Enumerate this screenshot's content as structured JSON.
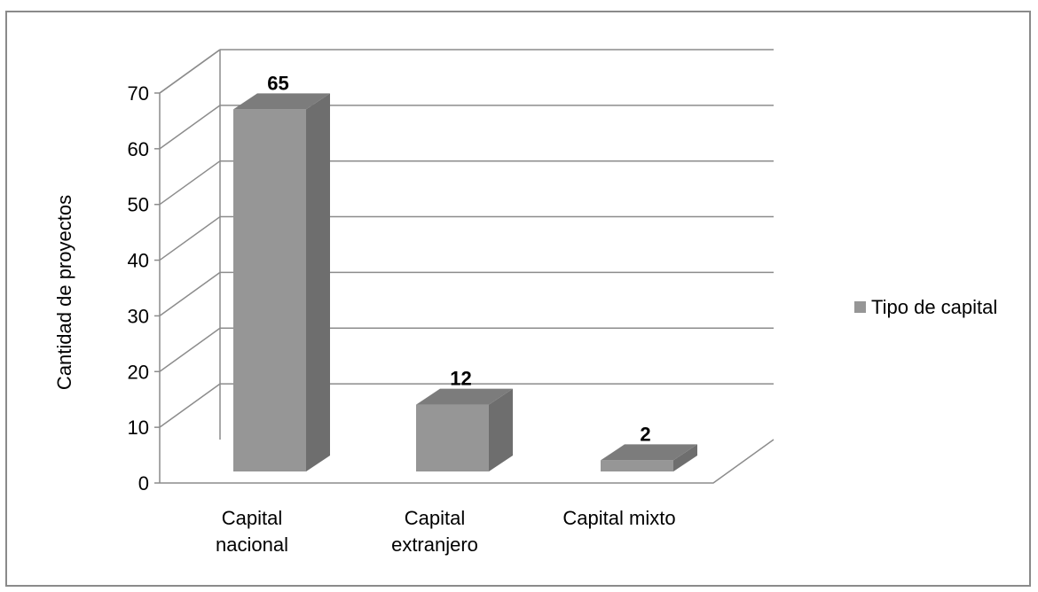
{
  "chart_data": {
    "type": "bar",
    "categories": [
      [
        "Capital",
        "nacional"
      ],
      [
        "Capital",
        "extranjero"
      ],
      [
        "Capital mixto"
      ]
    ],
    "series": [
      {
        "name": "Tipo de capital",
        "values": [
          65,
          12,
          2
        ],
        "color": "#969696"
      }
    ],
    "data_labels": [
      "65",
      "12",
      "2"
    ],
    "y_ticks": [
      "0",
      "10",
      "20",
      "30",
      "40",
      "50",
      "60",
      "70"
    ],
    "ylim": [
      0,
      70
    ],
    "ylabel": "Cantidad de proyectos",
    "xlabel": "",
    "title": "",
    "legend_position": "right",
    "grid": true,
    "style": "3d-column"
  }
}
